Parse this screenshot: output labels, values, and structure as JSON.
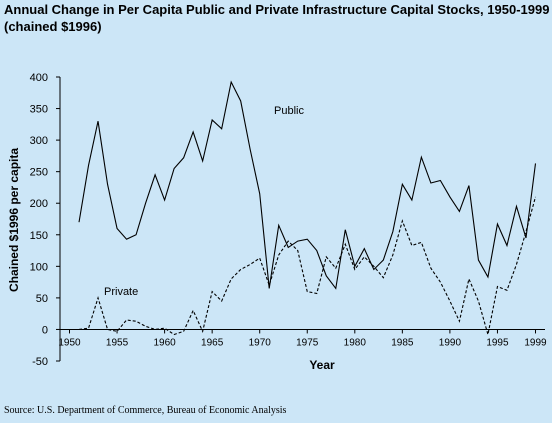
{
  "chart_data": {
    "type": "line",
    "title": "Annual Change in Per Capita Public and Private Infrastructure Capital Stocks, 1950-1999",
    "subtitle": "(chained $1996)",
    "y_label": "Chained $1996 per capita",
    "x_label": "Year",
    "source": "Source: U.S. Department of Commerce, Bureau of Economic Analysis",
    "x": [
      1951,
      1952,
      1953,
      1954,
      1955,
      1956,
      1957,
      1958,
      1959,
      1960,
      1961,
      1962,
      1963,
      1964,
      1965,
      1966,
      1967,
      1968,
      1969,
      1970,
      1971,
      1972,
      1973,
      1974,
      1975,
      1976,
      1977,
      1978,
      1979,
      1980,
      1981,
      1982,
      1983,
      1984,
      1985,
      1986,
      1987,
      1988,
      1989,
      1990,
      1991,
      1992,
      1993,
      1994,
      1995,
      1996,
      1997,
      1998,
      1999
    ],
    "series": [
      {
        "name": "Public",
        "color": "#000000",
        "dash": false,
        "values": [
          170,
          260,
          330,
          230,
          160,
          143,
          150,
          200,
          245,
          205,
          255,
          272,
          313,
          267,
          332,
          318,
          392,
          362,
          285,
          215,
          65,
          165,
          130,
          140,
          143,
          125,
          85,
          65,
          158,
          100,
          128,
          95,
          110,
          155,
          230,
          205,
          273,
          232,
          236,
          210,
          187,
          228,
          110,
          83,
          167,
          133,
          195,
          145,
          263
        ]
      },
      {
        "name": "Private",
        "color": "#000000",
        "dash": true,
        "values": [
          0,
          2,
          50,
          0,
          -3,
          15,
          13,
          5,
          0,
          2,
          -8,
          -3,
          30,
          -3,
          60,
          45,
          80,
          95,
          103,
          113,
          70,
          118,
          140,
          125,
          60,
          57,
          115,
          97,
          135,
          95,
          115,
          100,
          82,
          118,
          172,
          133,
          138,
          97,
          75,
          45,
          13,
          80,
          45,
          -8,
          68,
          62,
          103,
          155,
          210
        ]
      }
    ],
    "xlim": [
      1949,
      2000
    ],
    "xticks": [
      1950,
      1955,
      1960,
      1965,
      1970,
      1975,
      1980,
      1985,
      1990,
      1995,
      1999
    ],
    "ylim": [
      -50,
      400
    ],
    "yticks": [
      400,
      350,
      300,
      250,
      200,
      150,
      100,
      50,
      0,
      -50
    ]
  }
}
